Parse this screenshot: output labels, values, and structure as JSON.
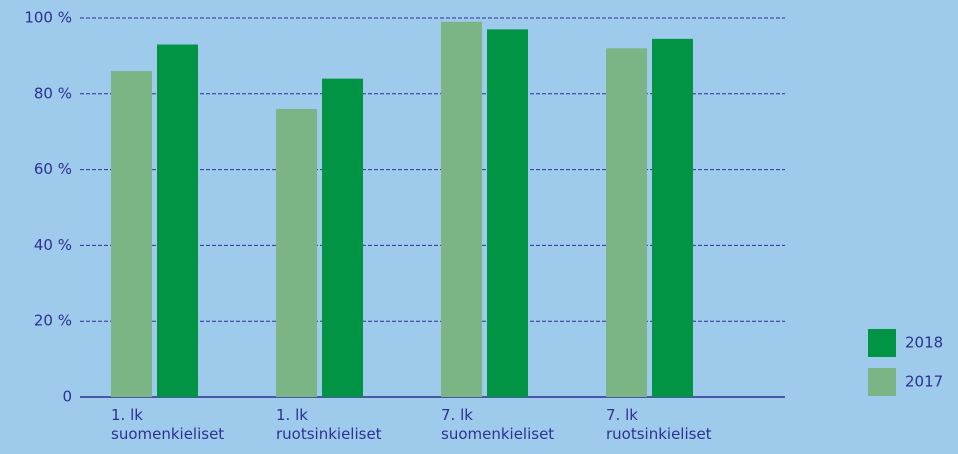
{
  "chart_data": {
    "type": "bar",
    "categories": [
      "1. lk\nsuomenkieliset",
      "1. lk\nruotsinkieliset",
      "7. lk\nsuomenkieliset",
      "7. lk\nruotsinkieliset"
    ],
    "series": [
      {
        "name": "2017",
        "color": "#7bb585",
        "values": [
          86,
          76,
          99,
          92
        ]
      },
      {
        "name": "2018",
        "color": "#009444",
        "values": [
          93,
          84,
          97,
          94.5
        ]
      }
    ],
    "ylim": [
      0,
      100
    ],
    "yticks": [
      0,
      {
        "value": 20,
        "label": "20 %"
      },
      {
        "value": 40,
        "label": "40 %"
      },
      {
        "value": 60,
        "label": "60 %"
      },
      {
        "value": 80,
        "label": "80 %"
      },
      {
        "value": 100,
        "label": "100 %"
      }
    ],
    "grid": true
  }
}
